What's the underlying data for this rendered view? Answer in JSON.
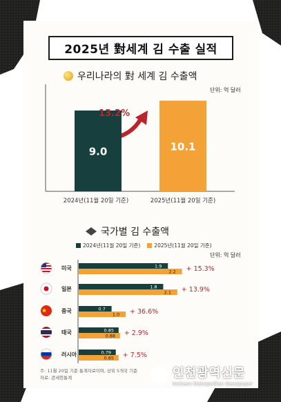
{
  "title": "2025년 對세계 김 수출 실적",
  "section1": {
    "title": "우리나라의 對 세계 김 수출액",
    "unit": "단위: 억 달러"
  },
  "section2": {
    "title": "국가별 김 수출액",
    "unit": "단위: 억 달러"
  },
  "note": {
    "line1": "주: 11월 20일 기준 통계자료이며, 상위 5개국 기준",
    "line2": "자료: 관세청통계"
  },
  "watermark": {
    "ko": "인천광역신문",
    "en": "Incheon Metropolitan Newspaper"
  },
  "colors": {
    "dark": "#173f3d",
    "orange": "#f2a236",
    "red": "#b8252c"
  },
  "chart_data": [
    {
      "type": "bar",
      "categories": [
        "2024년(11월 20일 기준)",
        "2025년(11월 20일 기준)"
      ],
      "values": [
        9.0,
        10.1
      ],
      "value_labels": [
        "9.0",
        "10.1"
      ],
      "growth_label": "13.2%",
      "ylabel": "단위: 억 달러"
    },
    {
      "type": "bar",
      "orientation": "horizontal",
      "categories": [
        "미국",
        "일본",
        "중국",
        "태국",
        "러시아"
      ],
      "category_icons": [
        "us-flag-icon",
        "japan-flag-icon",
        "china-flag-icon",
        "thailand-flag-icon",
        "russia-flag-icon"
      ],
      "series": [
        {
          "name": "2024년(11월 20일 기준)",
          "values": [
            1.9,
            1.8,
            0.7,
            0.85,
            0.79
          ],
          "labels": [
            "1.9",
            "1.8",
            "0.7",
            "0.85",
            "0.79"
          ]
        },
        {
          "name": "2025년(11월 20일 기준)",
          "values": [
            2.2,
            2.1,
            1.0,
            0.88,
            0.85
          ],
          "labels": [
            "2.2",
            "2.1",
            "1.0",
            "0.88",
            "0.85"
          ]
        }
      ],
      "growth": [
        "+ 15.3%",
        "+ 13.9%",
        "+ 36.6%",
        "+ 2.9%",
        "+ 7.5%"
      ],
      "legend": "top"
    }
  ]
}
